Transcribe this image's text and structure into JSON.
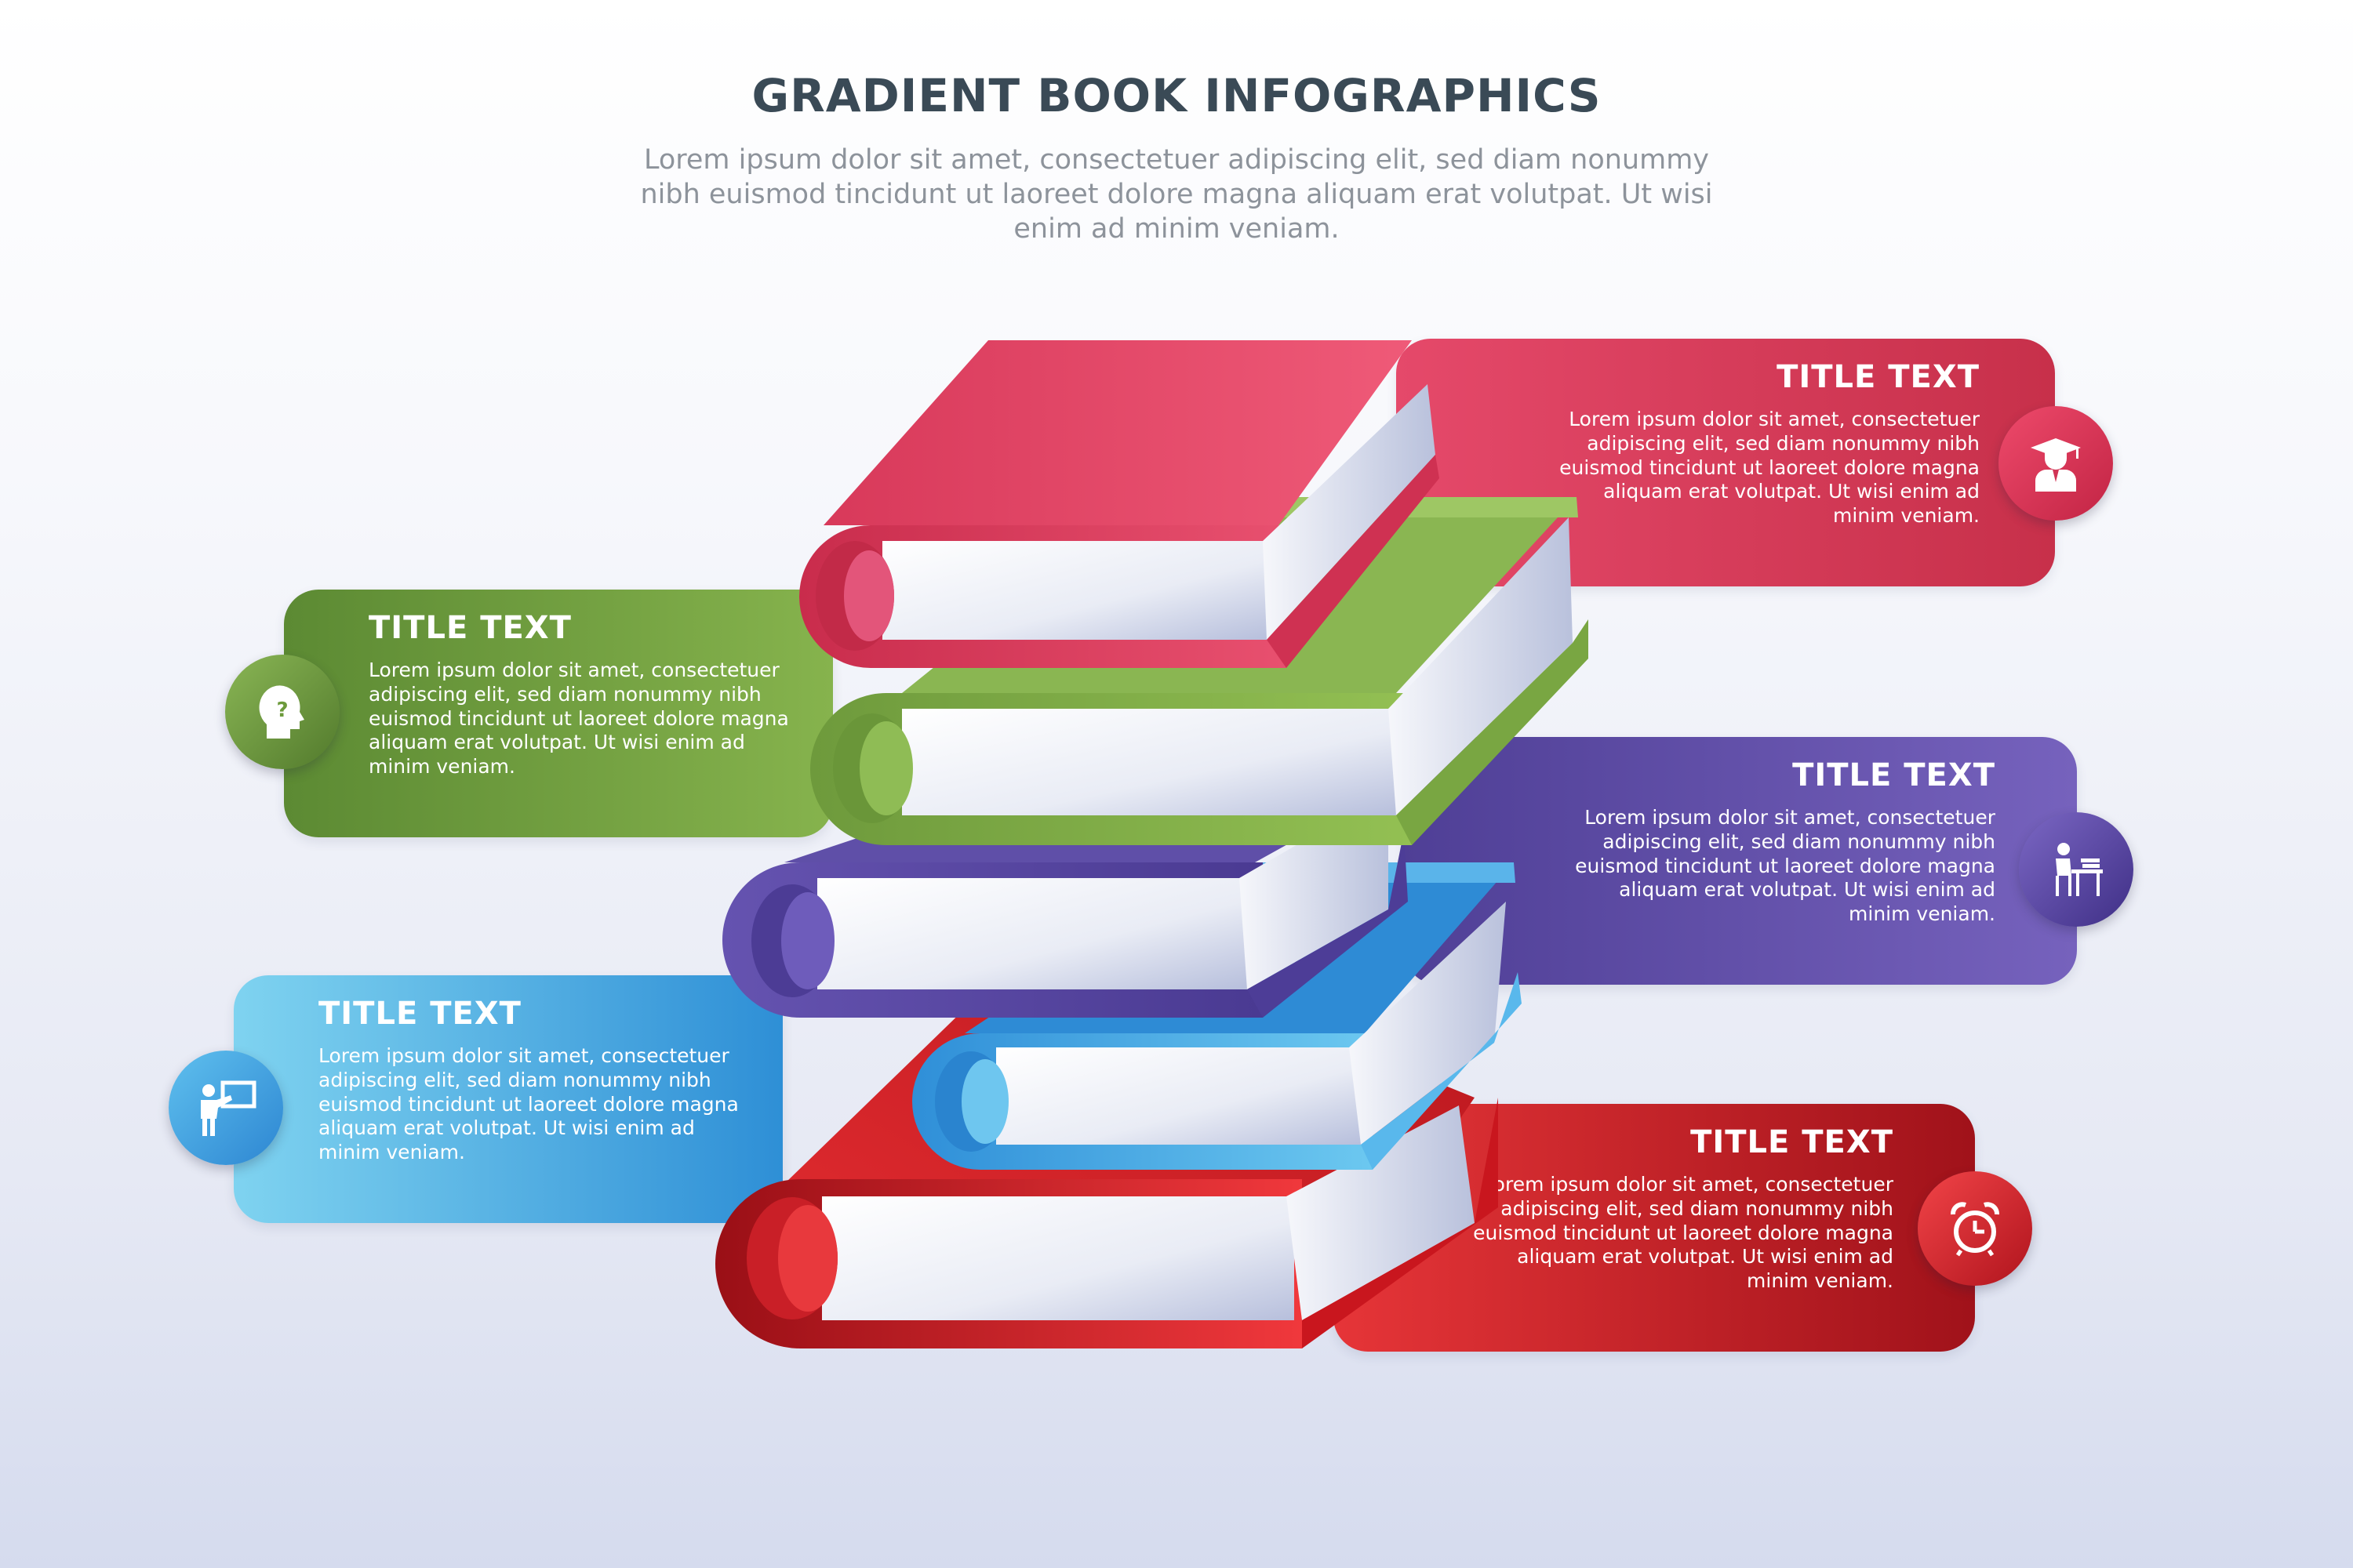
{
  "header": {
    "title": "GRADIENT BOOK INFOGRAPHICS",
    "subtitle": "Lorem ipsum dolor sit amet, consectetuer adipiscing elit, sed diam nonummy nibh euismod tincidunt ut laoreet dolore magna aliquam erat volutpat. Ut wisi enim ad minim veniam."
  },
  "colors": {
    "heading": "#3a4a56",
    "subtitle": "#8d939b",
    "pink": "#d93a5a",
    "green": "#7ea745",
    "purple": "#5f4fa8",
    "blue": "#3a9ee0",
    "red": "#d8242c"
  },
  "items": [
    {
      "id": "graduate",
      "icon": "graduate-icon",
      "color": "pink",
      "title": "TITLE TEXT",
      "body": "Lorem ipsum dolor sit amet, consectetuer adipiscing elit, sed diam nonummy nibh euismod tincidunt ut laoreet dolore magna aliquam erat volutpat. Ut wisi enim ad minim veniam."
    },
    {
      "id": "thinking",
      "icon": "head-question-icon",
      "color": "green",
      "title": "TITLE TEXT",
      "body": "Lorem ipsum dolor sit amet, consectetuer adipiscing elit, sed diam nonummy nibh euismod tincidunt ut laoreet dolore magna aliquam erat volutpat. Ut wisi enim ad minim veniam."
    },
    {
      "id": "student",
      "icon": "student-desk-icon",
      "color": "purple",
      "title": "TITLE TEXT",
      "body": "Lorem ipsum dolor sit amet, consectetuer adipiscing elit, sed diam nonummy nibh euismod tincidunt ut laoreet dolore magna aliquam erat volutpat. Ut wisi enim ad minim veniam."
    },
    {
      "id": "teacher",
      "icon": "teacher-board-icon",
      "color": "blue",
      "title": "TITLE TEXT",
      "body": "Lorem ipsum dolor sit amet, consectetuer adipiscing elit, sed diam nonummy nibh euismod tincidunt ut laoreet dolore magna aliquam erat volutpat. Ut wisi enim ad minim veniam."
    },
    {
      "id": "clock",
      "icon": "alarm-clock-icon",
      "color": "red",
      "title": "TITLE TEXT",
      "body": "Lorem ipsum dolor sit amet, consectetuer adipiscing elit, sed diam nonummy nibh euismod tincidunt ut laoreet dolore magna aliquam erat volutpat. Ut wisi enim ad minim veniam."
    }
  ]
}
